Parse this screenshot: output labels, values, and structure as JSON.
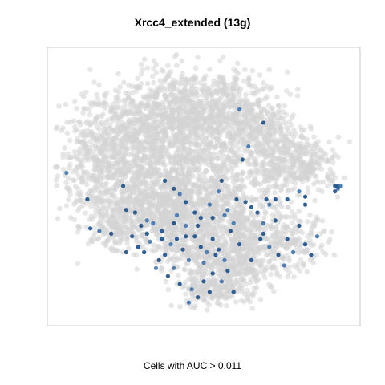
{
  "chart_data": {
    "type": "scatter",
    "title": "Xrcc4_extended (13g)",
    "xlabel": "Cells with AUC > 0.011",
    "ylabel": "",
    "axes_visible": false,
    "grid": false,
    "legend": "none",
    "colors": {
      "background_cells": "#d3d3d3",
      "high_auc_cells": "#1a4f8a",
      "high_auc_light": "#3f74ad",
      "frame": "#c8c8c8"
    },
    "series": [
      {
        "role": "all-cells",
        "clusters": [
          {
            "cx": 0.15,
            "cy": 0.58,
            "sx": 0.07,
            "sy": 0.11,
            "n": 420
          },
          {
            "cx": 0.3,
            "cy": 0.7,
            "sx": 0.1,
            "sy": 0.1,
            "n": 520
          },
          {
            "cx": 0.45,
            "cy": 0.78,
            "sx": 0.1,
            "sy": 0.08,
            "n": 520
          },
          {
            "cx": 0.6,
            "cy": 0.75,
            "sx": 0.09,
            "sy": 0.09,
            "n": 460
          },
          {
            "cx": 0.72,
            "cy": 0.62,
            "sx": 0.06,
            "sy": 0.09,
            "n": 300
          },
          {
            "cx": 0.42,
            "cy": 0.55,
            "sx": 0.12,
            "sy": 0.09,
            "n": 520
          },
          {
            "cx": 0.33,
            "cy": 0.42,
            "sx": 0.09,
            "sy": 0.07,
            "n": 420
          },
          {
            "cx": 0.5,
            "cy": 0.4,
            "sx": 0.1,
            "sy": 0.08,
            "n": 460
          },
          {
            "cx": 0.48,
            "cy": 0.28,
            "sx": 0.08,
            "sy": 0.06,
            "n": 300
          },
          {
            "cx": 0.58,
            "cy": 0.18,
            "sx": 0.07,
            "sy": 0.05,
            "n": 240
          },
          {
            "cx": 0.65,
            "cy": 0.3,
            "sx": 0.07,
            "sy": 0.07,
            "n": 280
          },
          {
            "cx": 0.84,
            "cy": 0.58,
            "sx": 0.06,
            "sy": 0.05,
            "n": 220
          },
          {
            "cx": 0.8,
            "cy": 0.28,
            "sx": 0.06,
            "sy": 0.05,
            "n": 160
          },
          {
            "cx": 0.52,
            "cy": 0.1,
            "sx": 0.06,
            "sy": 0.03,
            "n": 140
          },
          {
            "cx": 0.22,
            "cy": 0.36,
            "sx": 0.05,
            "sy": 0.05,
            "n": 160
          }
        ]
      },
      {
        "role": "cells-above-threshold",
        "points": [
          [
            0.04,
            0.55
          ],
          [
            0.11,
            0.45
          ],
          [
            0.12,
            0.34
          ],
          [
            0.15,
            0.33
          ],
          [
            0.23,
            0.5
          ],
          [
            0.24,
            0.41
          ],
          [
            0.31,
            0.37
          ],
          [
            0.37,
            0.52
          ],
          [
            0.4,
            0.49
          ],
          [
            0.42,
            0.47
          ],
          [
            0.44,
            0.44
          ],
          [
            0.49,
            0.38
          ],
          [
            0.52,
            0.43
          ],
          [
            0.56,
            0.52
          ],
          [
            0.63,
            0.6
          ],
          [
            0.65,
            0.65
          ],
          [
            0.66,
            0.42
          ],
          [
            0.68,
            0.4
          ],
          [
            0.72,
            0.43
          ],
          [
            0.74,
            0.45
          ],
          [
            0.78,
            0.45
          ],
          [
            0.82,
            0.48
          ],
          [
            0.84,
            0.46
          ],
          [
            0.94,
            0.48
          ],
          [
            0.95,
            0.49
          ],
          [
            0.95,
            0.5
          ],
          [
            0.94,
            0.5
          ],
          [
            0.96,
            0.5
          ],
          [
            0.3,
            0.25
          ],
          [
            0.28,
            0.27
          ],
          [
            0.32,
            0.29
          ],
          [
            0.35,
            0.22
          ],
          [
            0.37,
            0.24
          ],
          [
            0.39,
            0.28
          ],
          [
            0.41,
            0.3
          ],
          [
            0.43,
            0.26
          ],
          [
            0.45,
            0.22
          ],
          [
            0.47,
            0.31
          ],
          [
            0.49,
            0.27
          ],
          [
            0.51,
            0.25
          ],
          [
            0.53,
            0.3
          ],
          [
            0.55,
            0.26
          ],
          [
            0.57,
            0.22
          ],
          [
            0.59,
            0.33
          ],
          [
            0.48,
            0.35
          ],
          [
            0.44,
            0.35
          ],
          [
            0.4,
            0.36
          ],
          [
            0.36,
            0.33
          ],
          [
            0.33,
            0.36
          ],
          [
            0.26,
            0.31
          ],
          [
            0.24,
            0.25
          ],
          [
            0.34,
            0.19
          ],
          [
            0.38,
            0.16
          ],
          [
            0.42,
            0.13
          ],
          [
            0.46,
            0.11
          ],
          [
            0.5,
            0.14
          ],
          [
            0.53,
            0.17
          ],
          [
            0.56,
            0.14
          ],
          [
            0.52,
            0.1
          ],
          [
            0.48,
            0.08
          ],
          [
            0.45,
            0.06
          ],
          [
            0.6,
            0.1
          ],
          [
            0.7,
            0.32
          ],
          [
            0.72,
            0.27
          ],
          [
            0.75,
            0.24
          ],
          [
            0.78,
            0.3
          ],
          [
            0.8,
            0.25
          ],
          [
            0.84,
            0.28
          ],
          [
            0.86,
            0.24
          ],
          [
            0.88,
            0.31
          ],
          [
            0.82,
            0.35
          ],
          [
            0.74,
            0.37
          ],
          [
            0.7,
            0.36
          ],
          [
            0.66,
            0.22
          ],
          [
            0.62,
            0.28
          ],
          [
            0.6,
            0.36
          ],
          [
            0.31,
            0.32
          ],
          [
            0.29,
            0.35
          ],
          [
            0.41,
            0.39
          ],
          [
            0.47,
            0.4
          ],
          [
            0.53,
            0.38
          ],
          [
            0.57,
            0.39
          ],
          [
            0.61,
            0.45
          ],
          [
            0.69,
            0.3
          ],
          [
            0.77,
            0.2
          ],
          [
            0.84,
            0.43
          ],
          [
            0.7,
            0.74
          ],
          [
            0.62,
            0.79
          ],
          [
            0.19,
            0.32
          ],
          [
            0.27,
            0.4
          ],
          [
            0.55,
            0.48
          ],
          [
            0.64,
            0.44
          ],
          [
            0.71,
            0.45
          ],
          [
            0.58,
            0.41
          ],
          [
            0.44,
            0.31
          ],
          [
            0.36,
            0.3
          ],
          [
            0.5,
            0.21
          ],
          [
            0.54,
            0.24
          ],
          [
            0.58,
            0.18
          ],
          [
            0.4,
            0.19
          ]
        ]
      }
    ]
  }
}
